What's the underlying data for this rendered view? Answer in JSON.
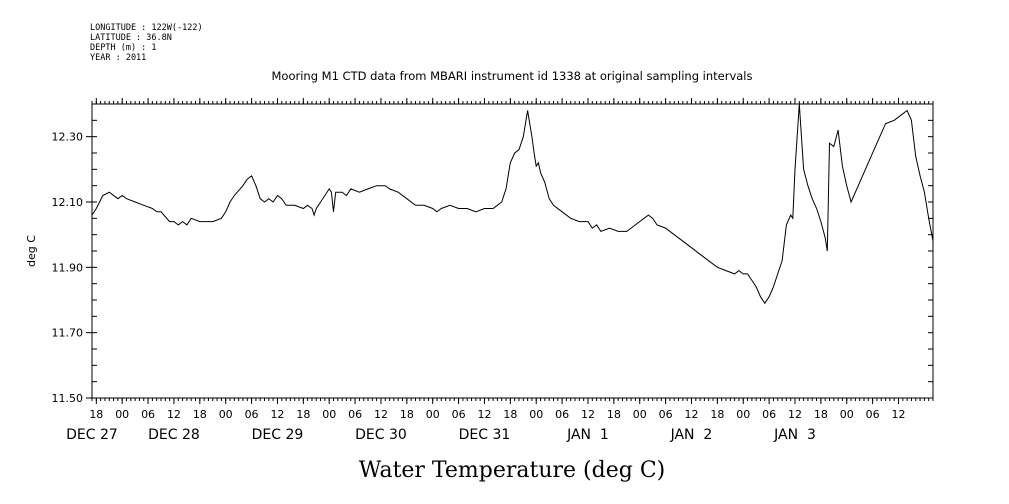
{
  "meta": {
    "longitude": "LONGITUDE : 122W(-122)",
    "latitude": "LATITUDE : 36.8N",
    "depth": "DEPTH (m) : 1",
    "year": "YEAR : 2011"
  },
  "chart_data": {
    "type": "line",
    "title": "Mooring M1 CTD data from MBARI instrument id 1338 at original sampling intervals",
    "xlabel": "Water Temperature (deg C)",
    "ylabel": "deg C",
    "grid": false,
    "legend": "none",
    "colors": {
      "line": "#000000",
      "axis": "#000000",
      "background": "#ffffff"
    },
    "x_unit": "hour",
    "xlim": [
      "2011-12-26 17:00",
      "2012-01-03 20:00"
    ],
    "ylim": [
      11.5,
      12.4
    ],
    "y_ticks": [
      {
        "value": 11.5,
        "label": "11.50"
      },
      {
        "value": 11.7,
        "label": "11.70"
      },
      {
        "value": 11.9,
        "label": "11.90"
      },
      {
        "value": 12.1,
        "label": "12.10"
      },
      {
        "value": 12.3,
        "label": "12.30"
      }
    ],
    "x_hour_ticks": [
      {
        "x": "2011-12-26 18:00",
        "label": "18"
      },
      {
        "x": "2011-12-27 00:00",
        "label": "00"
      },
      {
        "x": "2011-12-27 06:00",
        "label": "06"
      },
      {
        "x": "2011-12-27 12:00",
        "label": "12"
      },
      {
        "x": "2011-12-27 18:00",
        "label": "18"
      },
      {
        "x": "2011-12-28 00:00",
        "label": "00"
      },
      {
        "x": "2011-12-28 06:00",
        "label": "06"
      },
      {
        "x": "2011-12-28 12:00",
        "label": "12"
      },
      {
        "x": "2011-12-28 18:00",
        "label": "18"
      },
      {
        "x": "2011-12-29 00:00",
        "label": "00"
      },
      {
        "x": "2011-12-29 06:00",
        "label": "06"
      },
      {
        "x": "2011-12-29 12:00",
        "label": "12"
      },
      {
        "x": "2011-12-29 18:00",
        "label": "18"
      },
      {
        "x": "2011-12-30 00:00",
        "label": "00"
      },
      {
        "x": "2011-12-30 06:00",
        "label": "06"
      },
      {
        "x": "2011-12-30 12:00",
        "label": "12"
      },
      {
        "x": "2011-12-30 18:00",
        "label": "18"
      },
      {
        "x": "2011-12-31 00:00",
        "label": "00"
      },
      {
        "x": "2011-12-31 06:00",
        "label": "06"
      },
      {
        "x": "2011-12-31 12:00",
        "label": "12"
      },
      {
        "x": "2011-12-31 18:00",
        "label": "18"
      },
      {
        "x": "2012-01-01 00:00",
        "label": "00"
      },
      {
        "x": "2012-01-01 06:00",
        "label": "06"
      },
      {
        "x": "2012-01-01 12:00",
        "label": "12"
      },
      {
        "x": "2012-01-01 18:00",
        "label": "18"
      },
      {
        "x": "2012-01-02 00:00",
        "label": "00"
      },
      {
        "x": "2012-01-02 06:00",
        "label": "06"
      },
      {
        "x": "2012-01-02 12:00",
        "label": "12"
      },
      {
        "x": "2012-01-02 18:00",
        "label": "18"
      },
      {
        "x": "2012-01-03 00:00",
        "label": "00"
      },
      {
        "x": "2012-01-03 06:00",
        "label": "06"
      },
      {
        "x": "2012-01-03 12:00",
        "label": "12"
      }
    ],
    "x_day_labels": [
      {
        "x": "2011-12-26 17:00",
        "label": "DEC 27"
      },
      {
        "x": "2011-12-27 12:00",
        "label": "DEC 28"
      },
      {
        "x": "2011-12-28 12:00",
        "label": "DEC 29"
      },
      {
        "x": "2011-12-29 12:00",
        "label": "DEC 30"
      },
      {
        "x": "2011-12-30 12:00",
        "label": "DEC 31"
      },
      {
        "x": "2011-12-31 12:00",
        "label": "JAN  1"
      },
      {
        "x": "2012-01-01 12:00",
        "label": "JAN  2"
      },
      {
        "x": "2012-01-02 12:00",
        "label": "JAN  3"
      }
    ],
    "series": [
      {
        "points": [
          [
            "2011-12-26 17:00",
            12.06
          ],
          [
            "2011-12-26 18:00",
            12.08
          ],
          [
            "2011-12-26 19:30",
            12.12
          ],
          [
            "2011-12-26 21:00",
            12.13
          ],
          [
            "2011-12-26 23:00",
            12.11
          ],
          [
            "2011-12-27 00:00",
            12.12
          ],
          [
            "2011-12-27 01:00",
            12.11
          ],
          [
            "2011-12-27 03:00",
            12.1
          ],
          [
            "2011-12-27 05:00",
            12.09
          ],
          [
            "2011-12-27 07:00",
            12.08
          ],
          [
            "2011-12-27 08:00",
            12.07
          ],
          [
            "2011-12-27 09:00",
            12.07
          ],
          [
            "2011-12-27 11:00",
            12.04
          ],
          [
            "2011-12-27 12:00",
            12.04
          ],
          [
            "2011-12-27 13:00",
            12.03
          ],
          [
            "2011-12-27 14:00",
            12.04
          ],
          [
            "2011-12-27 15:00",
            12.03
          ],
          [
            "2011-12-27 16:00",
            12.05
          ],
          [
            "2011-12-27 18:00",
            12.04
          ],
          [
            "2011-12-27 19:00",
            12.04
          ],
          [
            "2011-12-27 21:00",
            12.04
          ],
          [
            "2011-12-27 23:00",
            12.05
          ],
          [
            "2011-12-28 00:00",
            12.07
          ],
          [
            "2011-12-28 01:00",
            12.1
          ],
          [
            "2011-12-28 02:00",
            12.12
          ],
          [
            "2011-12-28 04:00",
            12.15
          ],
          [
            "2011-12-28 05:00",
            12.17
          ],
          [
            "2011-12-28 06:00",
            12.18
          ],
          [
            "2011-12-28 07:00",
            12.15
          ],
          [
            "2011-12-28 08:00",
            12.11
          ],
          [
            "2011-12-28 09:00",
            12.1
          ],
          [
            "2011-12-28 10:00",
            12.11
          ],
          [
            "2011-12-28 11:00",
            12.1
          ],
          [
            "2011-12-28 12:00",
            12.12
          ],
          [
            "2011-12-28 13:00",
            12.11
          ],
          [
            "2011-12-28 14:00",
            12.09
          ],
          [
            "2011-12-28 16:00",
            12.09
          ],
          [
            "2011-12-28 18:00",
            12.08
          ],
          [
            "2011-12-28 19:00",
            12.09
          ],
          [
            "2011-12-28 20:00",
            12.08
          ],
          [
            "2011-12-28 20:30",
            12.06
          ],
          [
            "2011-12-28 21:00",
            12.08
          ],
          [
            "2011-12-28 22:00",
            12.1
          ],
          [
            "2011-12-29 00:00",
            12.14
          ],
          [
            "2011-12-29 00:30",
            12.13
          ],
          [
            "2011-12-29 01:00",
            12.07
          ],
          [
            "2011-12-29 01:30",
            12.13
          ],
          [
            "2011-12-29 03:00",
            12.13
          ],
          [
            "2011-12-29 04:00",
            12.12
          ],
          [
            "2011-12-29 05:00",
            12.14
          ],
          [
            "2011-12-29 07:00",
            12.13
          ],
          [
            "2011-12-29 09:00",
            12.14
          ],
          [
            "2011-12-29 11:00",
            12.15
          ],
          [
            "2011-12-29 13:00",
            12.15
          ],
          [
            "2011-12-29 14:00",
            12.14
          ],
          [
            "2011-12-29 16:00",
            12.13
          ],
          [
            "2011-12-29 18:00",
            12.11
          ],
          [
            "2011-12-29 20:00",
            12.09
          ],
          [
            "2011-12-29 22:00",
            12.09
          ],
          [
            "2011-12-30 00:00",
            12.08
          ],
          [
            "2011-12-30 01:00",
            12.07
          ],
          [
            "2011-12-30 02:00",
            12.08
          ],
          [
            "2011-12-30 04:00",
            12.09
          ],
          [
            "2011-12-30 06:00",
            12.08
          ],
          [
            "2011-12-30 08:00",
            12.08
          ],
          [
            "2011-12-30 10:00",
            12.07
          ],
          [
            "2011-12-30 12:00",
            12.08
          ],
          [
            "2011-12-30 14:00",
            12.08
          ],
          [
            "2011-12-30 15:00",
            12.09
          ],
          [
            "2011-12-30 16:00",
            12.1
          ],
          [
            "2011-12-30 17:00",
            12.14
          ],
          [
            "2011-12-30 18:00",
            12.22
          ],
          [
            "2011-12-30 19:00",
            12.25
          ],
          [
            "2011-12-30 20:00",
            12.26
          ],
          [
            "2011-12-30 21:00",
            12.3
          ],
          [
            "2011-12-30 22:00",
            12.38
          ],
          [
            "2011-12-30 23:00",
            12.3
          ],
          [
            "2011-12-30 23:30",
            12.25
          ],
          [
            "2011-12-31 00:00",
            12.21
          ],
          [
            "2011-12-31 00:30",
            12.22
          ],
          [
            "2011-12-31 01:00",
            12.19
          ],
          [
            "2011-12-31 02:00",
            12.16
          ],
          [
            "2011-12-31 03:00",
            12.11
          ],
          [
            "2011-12-31 04:00",
            12.09
          ],
          [
            "2011-12-31 06:00",
            12.07
          ],
          [
            "2011-12-31 08:00",
            12.05
          ],
          [
            "2011-12-31 10:00",
            12.04
          ],
          [
            "2011-12-31 12:00",
            12.04
          ],
          [
            "2011-12-31 13:00",
            12.02
          ],
          [
            "2011-12-31 14:00",
            12.03
          ],
          [
            "2011-12-31 15:00",
            12.01
          ],
          [
            "2011-12-31 17:00",
            12.02
          ],
          [
            "2011-12-31 19:00",
            12.01
          ],
          [
            "2011-12-31 21:00",
            12.01
          ],
          [
            "2011-12-31 22:00",
            12.02
          ],
          [
            "2012-01-01 00:00",
            12.04
          ],
          [
            "2012-01-01 01:00",
            12.05
          ],
          [
            "2012-01-01 02:00",
            12.06
          ],
          [
            "2012-01-01 03:00",
            12.05
          ],
          [
            "2012-01-01 04:00",
            12.03
          ],
          [
            "2012-01-01 06:00",
            12.02
          ],
          [
            "2012-01-01 08:00",
            12.0
          ],
          [
            "2012-01-01 10:00",
            11.98
          ],
          [
            "2012-01-01 12:00",
            11.96
          ],
          [
            "2012-01-01 14:00",
            11.94
          ],
          [
            "2012-01-01 16:00",
            11.92
          ],
          [
            "2012-01-01 18:00",
            11.9
          ],
          [
            "2012-01-01 20:00",
            11.89
          ],
          [
            "2012-01-01 22:00",
            11.88
          ],
          [
            "2012-01-01 23:00",
            11.89
          ],
          [
            "2012-01-02 00:00",
            11.88
          ],
          [
            "2012-01-02 01:00",
            11.88
          ],
          [
            "2012-01-02 02:00",
            11.86
          ],
          [
            "2012-01-02 03:00",
            11.84
          ],
          [
            "2012-01-02 04:00",
            11.81
          ],
          [
            "2012-01-02 05:00",
            11.79
          ],
          [
            "2012-01-02 06:00",
            11.81
          ],
          [
            "2012-01-02 07:00",
            11.84
          ],
          [
            "2012-01-02 08:00",
            11.88
          ],
          [
            "2012-01-02 09:00",
            11.92
          ],
          [
            "2012-01-02 10:00",
            12.03
          ],
          [
            "2012-01-02 11:00",
            12.06
          ],
          [
            "2012-01-02 11:30",
            12.05
          ],
          [
            "2012-01-02 12:00",
            12.2
          ],
          [
            "2012-01-02 13:00",
            12.4
          ],
          [
            "2012-01-02 14:00",
            12.2
          ],
          [
            "2012-01-02 15:00",
            12.15
          ],
          [
            "2012-01-02 16:00",
            12.11
          ],
          [
            "2012-01-02 17:00",
            12.08
          ],
          [
            "2012-01-02 18:00",
            12.04
          ],
          [
            "2012-01-02 19:00",
            11.99
          ],
          [
            "2012-01-02 19:30",
            11.95
          ],
          [
            "2012-01-02 20:00",
            12.28
          ],
          [
            "2012-01-02 21:00",
            12.27
          ],
          [
            "2012-01-02 22:00",
            12.32
          ],
          [
            "2012-01-02 23:00",
            12.21
          ],
          [
            "2012-01-03 00:00",
            12.15
          ],
          [
            "2012-01-03 01:00",
            12.1
          ],
          [
            "2012-01-03 07:00",
            12.28
          ],
          [
            "2012-01-03 09:00",
            12.34
          ],
          [
            "2012-01-03 11:00",
            12.35
          ],
          [
            "2012-01-03 13:00",
            12.37
          ],
          [
            "2012-01-03 14:00",
            12.38
          ],
          [
            "2012-01-03 15:00",
            12.35
          ],
          [
            "2012-01-03 16:00",
            12.24
          ],
          [
            "2012-01-03 17:00",
            12.18
          ],
          [
            "2012-01-03 18:00",
            12.13
          ],
          [
            "2012-01-03 19:00",
            12.05
          ],
          [
            "2012-01-03 20:00",
            11.98
          ]
        ]
      }
    ]
  }
}
